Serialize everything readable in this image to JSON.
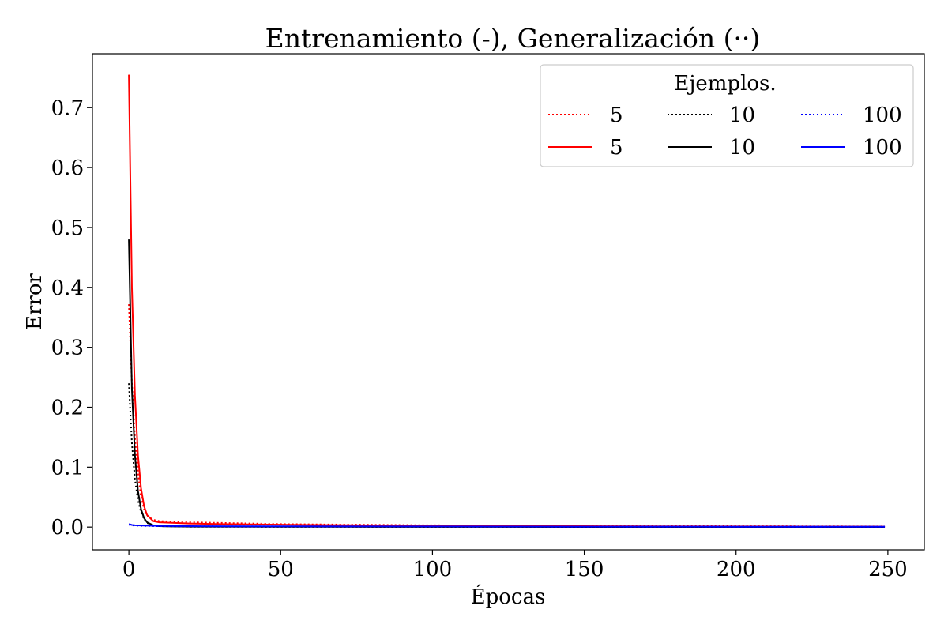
{
  "chart_data": {
    "type": "line",
    "title": "Entrenamiento (-), Generalización (··)",
    "xlabel": "Épocas",
    "ylabel": "Error",
    "xlim": [
      -12,
      262
    ],
    "ylim": [
      -0.038,
      0.79
    ],
    "xticks": [
      0,
      50,
      100,
      150,
      200,
      250
    ],
    "yticks": [
      0.0,
      0.1,
      0.2,
      0.3,
      0.4,
      0.5,
      0.6,
      0.7
    ],
    "ytick_labels": [
      "0.0",
      "0.1",
      "0.2",
      "0.3",
      "0.4",
      "0.5",
      "0.6",
      "0.7"
    ],
    "grid": false,
    "legend": {
      "title": "Ejemplos.",
      "placement": "top-right",
      "columns": 3
    },
    "series": [
      {
        "name": "5",
        "style": "dotted",
        "color": "#ff0000",
        "x": [
          0,
          1,
          2,
          3,
          4,
          5,
          6,
          8,
          10,
          15,
          20,
          30,
          50,
          75,
          100,
          150,
          200,
          249
        ],
        "y": [
          0.372,
          0.24,
          0.15,
          0.09,
          0.05,
          0.03,
          0.019,
          0.012,
          0.01,
          0.009,
          0.008,
          0.007,
          0.005,
          0.004,
          0.003,
          0.002,
          0.0015,
          0.001
        ]
      },
      {
        "name": "5",
        "style": "solid",
        "color": "#ff0000",
        "x": [
          0,
          1,
          2,
          3,
          4,
          5,
          6,
          8,
          10,
          15,
          20,
          30,
          50,
          75,
          100,
          150,
          200,
          249
        ],
        "y": [
          0.755,
          0.4,
          0.22,
          0.12,
          0.065,
          0.035,
          0.02,
          0.01,
          0.008,
          0.007,
          0.006,
          0.005,
          0.004,
          0.003,
          0.0025,
          0.0015,
          0.001,
          0.0008
        ]
      },
      {
        "name": "10",
        "style": "dotted",
        "color": "#000000",
        "x": [
          0,
          1,
          2,
          3,
          4,
          5,
          6,
          8,
          10,
          15,
          20,
          50,
          100,
          150,
          200,
          249
        ],
        "y": [
          0.24,
          0.14,
          0.08,
          0.045,
          0.025,
          0.013,
          0.007,
          0.003,
          0.0015,
          0.001,
          0.0008,
          0.0006,
          0.0004,
          0.0003,
          0.0002,
          0.0002
        ]
      },
      {
        "name": "10",
        "style": "solid",
        "color": "#000000",
        "x": [
          0,
          1,
          2,
          3,
          4,
          5,
          6,
          8,
          10,
          15,
          20,
          50,
          100,
          150,
          200,
          249
        ],
        "y": [
          0.48,
          0.23,
          0.12,
          0.06,
          0.03,
          0.015,
          0.008,
          0.003,
          0.0015,
          0.001,
          0.0008,
          0.0006,
          0.0004,
          0.0003,
          0.0002,
          0.0002
        ]
      },
      {
        "name": "100",
        "style": "dotted",
        "color": "#0000ff",
        "x": [
          0,
          1,
          2,
          5,
          10,
          20,
          50,
          100,
          150,
          200,
          249
        ],
        "y": [
          0.004,
          0.003,
          0.0025,
          0.002,
          0.0015,
          0.0012,
          0.001,
          0.0008,
          0.0006,
          0.0005,
          0.0005
        ]
      },
      {
        "name": "100",
        "style": "solid",
        "color": "#0000ff",
        "x": [
          0,
          1,
          2,
          5,
          10,
          20,
          50,
          100,
          150,
          200,
          249
        ],
        "y": [
          0.005,
          0.0035,
          0.003,
          0.0025,
          0.002,
          0.0015,
          0.0012,
          0.001,
          0.0008,
          0.0006,
          0.0005
        ]
      }
    ]
  }
}
